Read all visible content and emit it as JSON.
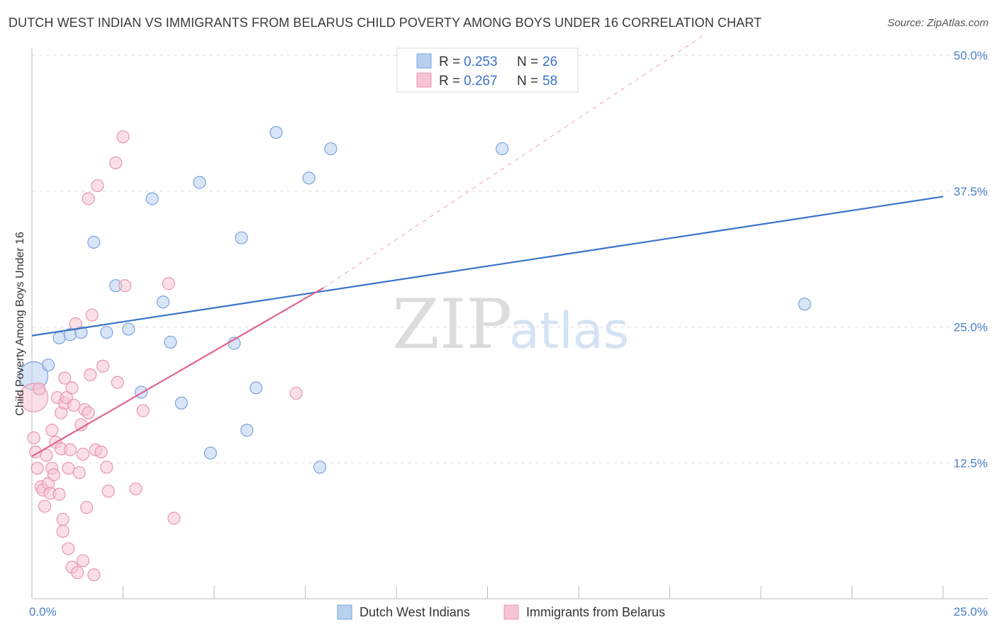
{
  "title": "DUTCH WEST INDIAN VS IMMIGRANTS FROM BELARUS CHILD POVERTY AMONG BOYS UNDER 16 CORRELATION CHART",
  "source": "Source: ZipAtlas.com",
  "watermark": {
    "zip": "ZIP",
    "atlas": "atlas"
  },
  "colors": {
    "blue_fill": "#b8d0f0",
    "blue_stroke": "#7aa3db",
    "blue_line": "#3a73cc",
    "pink_fill": "#f6c4d4",
    "pink_stroke": "#e995b1",
    "pink_line": "#e0638f",
    "tick_text": "#4a7fc9",
    "grid": "#dddddd"
  },
  "legend": {
    "items": [
      {
        "r_label": "R = ",
        "r_value": "0.253",
        "n_label": "N = ",
        "n_value": "26",
        "color": "blue"
      },
      {
        "r_label": "R = ",
        "r_value": "0.267",
        "n_label": "N = ",
        "n_value": "58",
        "color": "pink"
      }
    ]
  },
  "chart_data": {
    "type": "scatter",
    "title": "DUTCH WEST INDIAN VS IMMIGRANTS FROM BELARUS CHILD POVERTY AMONG BOYS UNDER 16 CORRELATION CHART",
    "xlabel": "",
    "ylabel": "Child Poverty Among Boys Under 16",
    "xlim": [
      0,
      25
    ],
    "ylim": [
      0,
      50
    ],
    "x_tick_labels": [
      {
        "value": 0,
        "label": "0.0%"
      },
      {
        "value": 25,
        "label": "25.0%"
      }
    ],
    "y_tick_labels": [
      {
        "value": 12.5,
        "label": "12.5%"
      },
      {
        "value": 25,
        "label": "25.0%"
      },
      {
        "value": 37.5,
        "label": "37.5%"
      },
      {
        "value": 50,
        "label": "50.0%"
      }
    ],
    "grid": true,
    "legend_position": "top-center",
    "series": [
      {
        "name": "Dutch West Indians",
        "color": "blue",
        "points": [
          {
            "x": 0.05,
            "y": 20.5,
            "size": "large"
          },
          {
            "x": 0.45,
            "y": 21.5
          },
          {
            "x": 0.75,
            "y": 24.0
          },
          {
            "x": 1.05,
            "y": 24.3
          },
          {
            "x": 1.35,
            "y": 24.5
          },
          {
            "x": 1.7,
            "y": 32.8
          },
          {
            "x": 2.3,
            "y": 28.8
          },
          {
            "x": 2.05,
            "y": 24.5
          },
          {
            "x": 2.65,
            "y": 24.8
          },
          {
            "x": 3.0,
            "y": 19.0
          },
          {
            "x": 3.3,
            "y": 36.8
          },
          {
            "x": 3.6,
            "y": 27.3
          },
          {
            "x": 3.8,
            "y": 23.6
          },
          {
            "x": 4.1,
            "y": 18.0
          },
          {
            "x": 4.6,
            "y": 38.3
          },
          {
            "x": 4.9,
            "y": 13.4
          },
          {
            "x": 5.55,
            "y": 23.5
          },
          {
            "x": 5.75,
            "y": 33.2
          },
          {
            "x": 5.9,
            "y": 15.5
          },
          {
            "x": 6.15,
            "y": 19.4
          },
          {
            "x": 6.7,
            "y": 42.9
          },
          {
            "x": 7.6,
            "y": 38.7
          },
          {
            "x": 7.9,
            "y": 12.1
          },
          {
            "x": 8.2,
            "y": 41.4
          },
          {
            "x": 12.9,
            "y": 41.4
          },
          {
            "x": 21.2,
            "y": 27.1
          }
        ]
      },
      {
        "name": "Immigrants from Belarus",
        "color": "pink",
        "points": [
          {
            "x": 0.05,
            "y": 18.5,
            "size": "large"
          },
          {
            "x": 0.05,
            "y": 14.8
          },
          {
            "x": 0.1,
            "y": 13.5
          },
          {
            "x": 0.15,
            "y": 12.0
          },
          {
            "x": 0.2,
            "y": 19.3
          },
          {
            "x": 0.25,
            "y": 10.3
          },
          {
            "x": 0.3,
            "y": 10.0
          },
          {
            "x": 0.35,
            "y": 8.5
          },
          {
            "x": 0.4,
            "y": 13.2
          },
          {
            "x": 0.45,
            "y": 10.6
          },
          {
            "x": 0.5,
            "y": 9.7
          },
          {
            "x": 0.55,
            "y": 15.5
          },
          {
            "x": 0.55,
            "y": 12.0
          },
          {
            "x": 0.6,
            "y": 11.4
          },
          {
            "x": 0.65,
            "y": 14.4
          },
          {
            "x": 0.7,
            "y": 18.5
          },
          {
            "x": 0.75,
            "y": 9.6
          },
          {
            "x": 0.8,
            "y": 13.8
          },
          {
            "x": 0.8,
            "y": 17.1
          },
          {
            "x": 0.85,
            "y": 7.3
          },
          {
            "x": 0.85,
            "y": 6.2
          },
          {
            "x": 0.9,
            "y": 18.0
          },
          {
            "x": 0.95,
            "y": 18.5
          },
          {
            "x": 1.0,
            "y": 12.0
          },
          {
            "x": 1.0,
            "y": 4.6
          },
          {
            "x": 1.05,
            "y": 13.7
          },
          {
            "x": 1.1,
            "y": 19.4
          },
          {
            "x": 1.15,
            "y": 17.8
          },
          {
            "x": 1.1,
            "y": 2.9
          },
          {
            "x": 1.2,
            "y": 25.3
          },
          {
            "x": 1.25,
            "y": 2.4
          },
          {
            "x": 1.3,
            "y": 11.6
          },
          {
            "x": 1.35,
            "y": 16.0
          },
          {
            "x": 1.4,
            "y": 13.3
          },
          {
            "x": 1.4,
            "y": 3.5
          },
          {
            "x": 1.45,
            "y": 17.4
          },
          {
            "x": 1.5,
            "y": 8.4
          },
          {
            "x": 1.55,
            "y": 17.1
          },
          {
            "x": 1.6,
            "y": 20.6
          },
          {
            "x": 1.65,
            "y": 26.1
          },
          {
            "x": 1.75,
            "y": 13.7
          },
          {
            "x": 1.7,
            "y": 2.2
          },
          {
            "x": 1.8,
            "y": 38.0
          },
          {
            "x": 1.9,
            "y": 13.5
          },
          {
            "x": 1.95,
            "y": 21.4
          },
          {
            "x": 1.55,
            "y": 36.8
          },
          {
            "x": 2.05,
            "y": 12.1
          },
          {
            "x": 2.1,
            "y": 9.9
          },
          {
            "x": 2.3,
            "y": 40.1
          },
          {
            "x": 2.35,
            "y": 19.9
          },
          {
            "x": 2.5,
            "y": 42.5
          },
          {
            "x": 2.55,
            "y": 28.8
          },
          {
            "x": 2.85,
            "y": 10.1
          },
          {
            "x": 3.05,
            "y": 17.3
          },
          {
            "x": 3.75,
            "y": 29.0
          },
          {
            "x": 3.9,
            "y": 7.4
          },
          {
            "x": 7.25,
            "y": 18.9
          },
          {
            "x": 0.9,
            "y": 20.3
          }
        ]
      }
    ],
    "trendlines": [
      {
        "series": "Dutch West Indians",
        "x0": 0,
        "y0": 24.2,
        "x1": 25,
        "y1": 37.0,
        "style": "solid"
      },
      {
        "series": "Immigrants from Belarus",
        "x0": 0,
        "y0": 13.1,
        "x1": 8.0,
        "y1": 28.6,
        "style": "solid"
      },
      {
        "series": "Immigrants from Belarus",
        "x0": 8.0,
        "y0": 28.6,
        "x1": 18.5,
        "y1": 52.0,
        "style": "dashed"
      }
    ]
  }
}
